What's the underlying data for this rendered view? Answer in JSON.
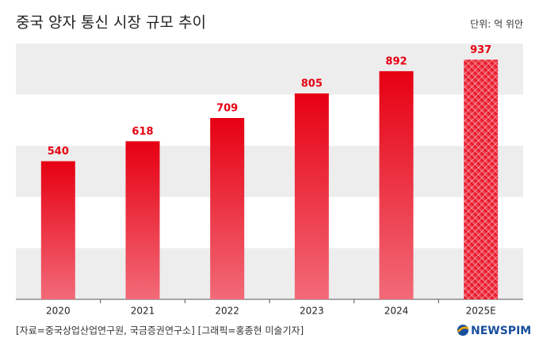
{
  "chart_data": {
    "type": "bar",
    "title": "중국 양자 통신 시장 규모 추이",
    "unit": "단위: 억 위안",
    "categories": [
      "2020",
      "2021",
      "2022",
      "2023",
      "2024",
      "2025E"
    ],
    "values": [
      540,
      618,
      709,
      805,
      892,
      937
    ],
    "color": "#e60012",
    "ylim": [
      0,
      1000
    ],
    "source": "[자료=중국상업산업연구원, 국금증권연구소] [그래픽=홍종현 미술기자]",
    "logo": "NEWSPIM"
  }
}
